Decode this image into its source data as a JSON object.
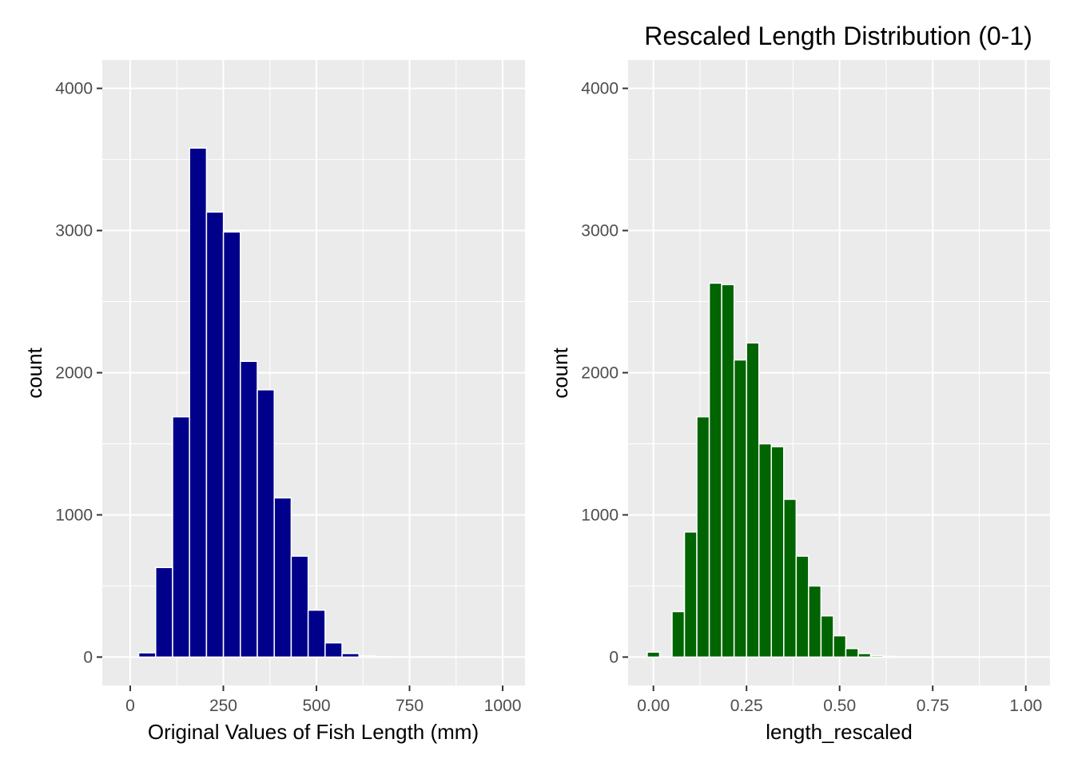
{
  "chart_data": [
    {
      "type": "bar",
      "title": "",
      "xlabel": "Original Values of Fish Length (mm)",
      "ylabel": "count",
      "bar_color": "#00008B",
      "bar_outline": "#ffffff",
      "xlim": [
        -75,
        1060
      ],
      "ylim": [
        -200,
        4200
      ],
      "x_ticks": [
        0,
        250,
        500,
        750,
        1000
      ],
      "x_tick_labels": [
        "0",
        "250",
        "500",
        "750",
        "1000"
      ],
      "y_ticks": [
        0,
        1000,
        2000,
        3000,
        4000
      ],
      "y_tick_labels": [
        "0",
        "1000",
        "2000",
        "3000",
        "4000"
      ],
      "grid": true,
      "bin_width": 45.5,
      "bins": [
        {
          "x": 45.5,
          "count": 30
        },
        {
          "x": 91.0,
          "count": 630
        },
        {
          "x": 136.5,
          "count": 1690
        },
        {
          "x": 182.0,
          "count": 3580
        },
        {
          "x": 227.5,
          "count": 3130
        },
        {
          "x": 273.0,
          "count": 2990
        },
        {
          "x": 318.5,
          "count": 2080
        },
        {
          "x": 364.0,
          "count": 1880
        },
        {
          "x": 409.5,
          "count": 1120
        },
        {
          "x": 455.0,
          "count": 710
        },
        {
          "x": 500.5,
          "count": 330
        },
        {
          "x": 546.0,
          "count": 100
        },
        {
          "x": 591.5,
          "count": 25
        },
        {
          "x": 637.0,
          "count": 8
        },
        {
          "x": 682.5,
          "count": 3
        },
        {
          "x": 728.0,
          "count": 1
        },
        {
          "x": 773.5,
          "count": 0
        },
        {
          "x": 819.0,
          "count": 0
        },
        {
          "x": 864.5,
          "count": 0
        },
        {
          "x": 910.0,
          "count": 0
        },
        {
          "x": 955.5,
          "count": 0
        },
        {
          "x": 1001.0,
          "count": 0
        }
      ]
    },
    {
      "type": "bar",
      "title": "Rescaled Length Distribution (0-1)",
      "xlabel": "length_rescaled",
      "ylabel": "count",
      "bar_color": "#006400",
      "bar_outline": "#ffffff",
      "xlim": [
        -0.068,
        1.065
      ],
      "ylim": [
        -200,
        4200
      ],
      "x_ticks": [
        0.0,
        0.25,
        0.5,
        0.75,
        1.0
      ],
      "x_tick_labels": [
        "0.00",
        "0.25",
        "0.50",
        "0.75",
        "1.00"
      ],
      "y_ticks": [
        0,
        1000,
        2000,
        3000,
        4000
      ],
      "y_tick_labels": [
        "0",
        "1000",
        "2000",
        "3000",
        "4000"
      ],
      "grid": true,
      "bin_width": 0.0333,
      "bins": [
        {
          "x": 0.0,
          "count": 35
        },
        {
          "x": 0.0333,
          "count": 0
        },
        {
          "x": 0.0667,
          "count": 320
        },
        {
          "x": 0.1,
          "count": 880
        },
        {
          "x": 0.1333,
          "count": 1690
        },
        {
          "x": 0.1667,
          "count": 2630
        },
        {
          "x": 0.2,
          "count": 2620
        },
        {
          "x": 0.2333,
          "count": 2090
        },
        {
          "x": 0.2667,
          "count": 2210
        },
        {
          "x": 0.3,
          "count": 1500
        },
        {
          "x": 0.3333,
          "count": 1480
        },
        {
          "x": 0.3667,
          "count": 1110
        },
        {
          "x": 0.4,
          "count": 710
        },
        {
          "x": 0.4333,
          "count": 500
        },
        {
          "x": 0.4667,
          "count": 290
        },
        {
          "x": 0.5,
          "count": 150
        },
        {
          "x": 0.5333,
          "count": 60
        },
        {
          "x": 0.5667,
          "count": 25
        },
        {
          "x": 0.6,
          "count": 10
        },
        {
          "x": 0.6333,
          "count": 5
        },
        {
          "x": 0.6667,
          "count": 2
        },
        {
          "x": 0.7,
          "count": 1
        },
        {
          "x": 0.7333,
          "count": 0
        },
        {
          "x": 0.7667,
          "count": 0
        },
        {
          "x": 0.8,
          "count": 0
        },
        {
          "x": 0.8333,
          "count": 0
        },
        {
          "x": 0.8667,
          "count": 0
        },
        {
          "x": 0.9,
          "count": 0
        },
        {
          "x": 0.9333,
          "count": 0
        },
        {
          "x": 0.9667,
          "count": 0
        },
        {
          "x": 1.0,
          "count": 0
        }
      ]
    }
  ]
}
